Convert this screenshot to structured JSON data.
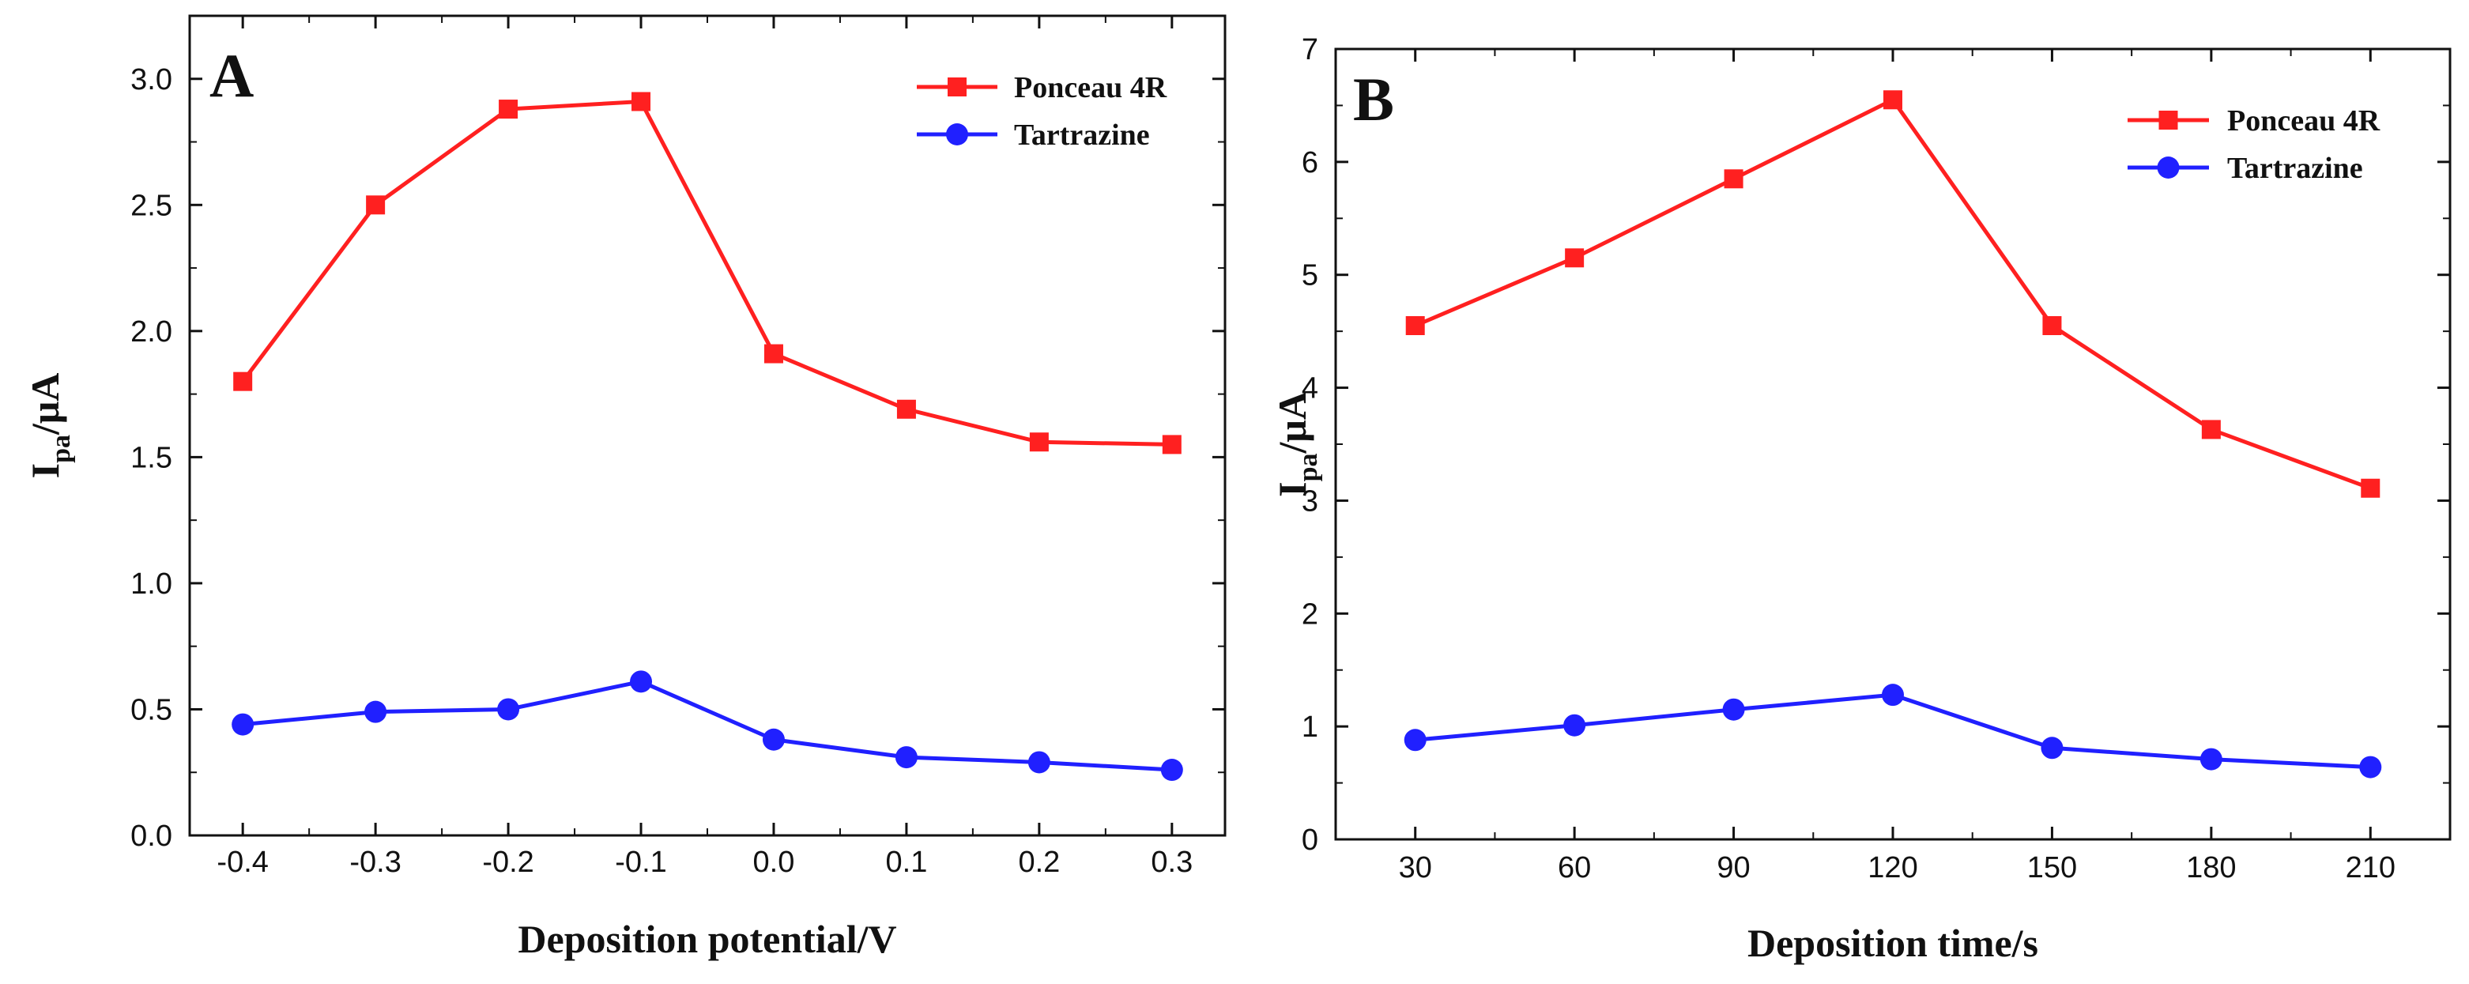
{
  "chart_data": [
    {
      "type": "line",
      "panel_label": "A",
      "xlabel": "Deposition potential/V",
      "ylabel_main": "I",
      "ylabel_sub": "pa",
      "ylabel_unit": "/μA",
      "x": [
        -0.4,
        -0.3,
        -0.2,
        -0.1,
        0.0,
        0.1,
        0.2,
        0.3
      ],
      "x_tick_labels": [
        "-0.4",
        "-0.3",
        "-0.2",
        "-0.1",
        "0.0",
        "0.1",
        "0.2",
        "0.3"
      ],
      "xlim": [
        -0.44,
        0.34
      ],
      "ylim": [
        0,
        3.25
      ],
      "y_ticks": [
        0,
        0.5,
        1.0,
        1.5,
        2.0,
        2.5,
        3.0
      ],
      "y_tick_labels": [
        "0.0",
        "0.5",
        "1.0",
        "1.5",
        "2.0",
        "2.5",
        "3.0"
      ],
      "legend_position": "top-right",
      "grid": false,
      "series": [
        {
          "name": "Ponceau 4R",
          "color": "#ff2020",
          "marker": "square",
          "values": [
            1.8,
            2.5,
            2.88,
            2.91,
            1.91,
            1.69,
            1.56,
            1.55
          ]
        },
        {
          "name": "Tartrazine",
          "color": "#2020ff",
          "marker": "circle",
          "values": [
            0.44,
            0.49,
            0.5,
            0.61,
            0.38,
            0.31,
            0.29,
            0.26
          ]
        }
      ]
    },
    {
      "type": "line",
      "panel_label": "B",
      "xlabel": "Deposition time/s",
      "ylabel_main": "I",
      "ylabel_sub": "pa",
      "ylabel_unit": "/μA",
      "x": [
        30,
        60,
        90,
        120,
        150,
        180,
        210
      ],
      "x_tick_labels": [
        "30",
        "60",
        "90",
        "120",
        "150",
        "180",
        "210"
      ],
      "xlim": [
        15,
        225
      ],
      "ylim": [
        0,
        7
      ],
      "y_ticks": [
        0,
        1,
        2,
        3,
        4,
        5,
        6,
        7
      ],
      "y_tick_labels": [
        "0",
        "1",
        "2",
        "3",
        "4",
        "5",
        "6",
        "7"
      ],
      "legend_position": "top-right",
      "grid": false,
      "series": [
        {
          "name": "Ponceau 4R",
          "color": "#ff2020",
          "marker": "square",
          "values": [
            4.55,
            5.15,
            5.85,
            6.55,
            4.55,
            3.63,
            3.11
          ]
        },
        {
          "name": "Tartrazine",
          "color": "#2020ff",
          "marker": "circle",
          "values": [
            0.88,
            1.01,
            1.15,
            1.28,
            0.81,
            0.71,
            0.64
          ]
        }
      ]
    }
  ]
}
